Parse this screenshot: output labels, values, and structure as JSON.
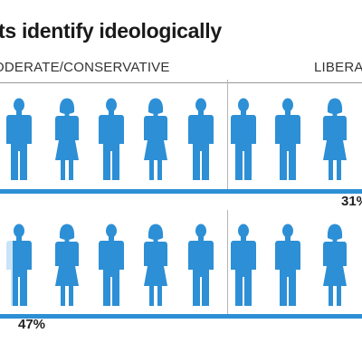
{
  "page": {
    "title": "ts identify ideologically"
  },
  "colors": {
    "figure": "#2d8fd5",
    "bar": "#2d8fd5",
    "rule": "#9a9a9a",
    "text": "#1a1a1a"
  },
  "chart_data": {
    "type": "pictogram",
    "columns": [
      {
        "label": "ODERATE/CONSERVATIVE"
      },
      {
        "label": "LIBERA"
      }
    ],
    "rows": [
      {
        "value_label": "31%",
        "figures": {
          "moderate": [
            "man",
            "woman",
            "man",
            "woman",
            "man"
          ],
          "liberal": [
            "man",
            "man",
            "woman"
          ]
        }
      },
      {
        "value_label": "47%",
        "figures": {
          "moderate": [
            "man",
            "woman",
            "man",
            "woman",
            "man"
          ],
          "liberal": [
            "man",
            "man",
            "woman"
          ]
        }
      }
    ]
  }
}
